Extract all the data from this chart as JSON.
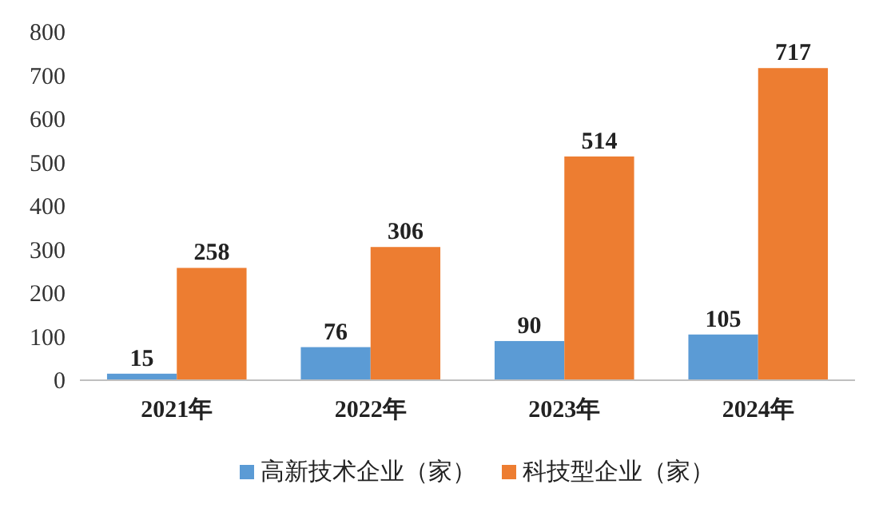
{
  "chart_data": {
    "type": "bar",
    "categories": [
      "2021年",
      "2022年",
      "2023年",
      "2024年"
    ],
    "series": [
      {
        "name": "高新技术企业（家）",
        "color": "#5b9bd5",
        "values": [
          15,
          76,
          90,
          105
        ]
      },
      {
        "name": "科技型企业（家）",
        "color": "#ed7d31",
        "values": [
          258,
          306,
          514,
          717
        ]
      }
    ],
    "ylim": [
      0,
      800
    ],
    "yticks": [
      0,
      100,
      200,
      300,
      400,
      500,
      600,
      700,
      800
    ],
    "data_labels": true,
    "grid": false,
    "legend": "bottom"
  }
}
